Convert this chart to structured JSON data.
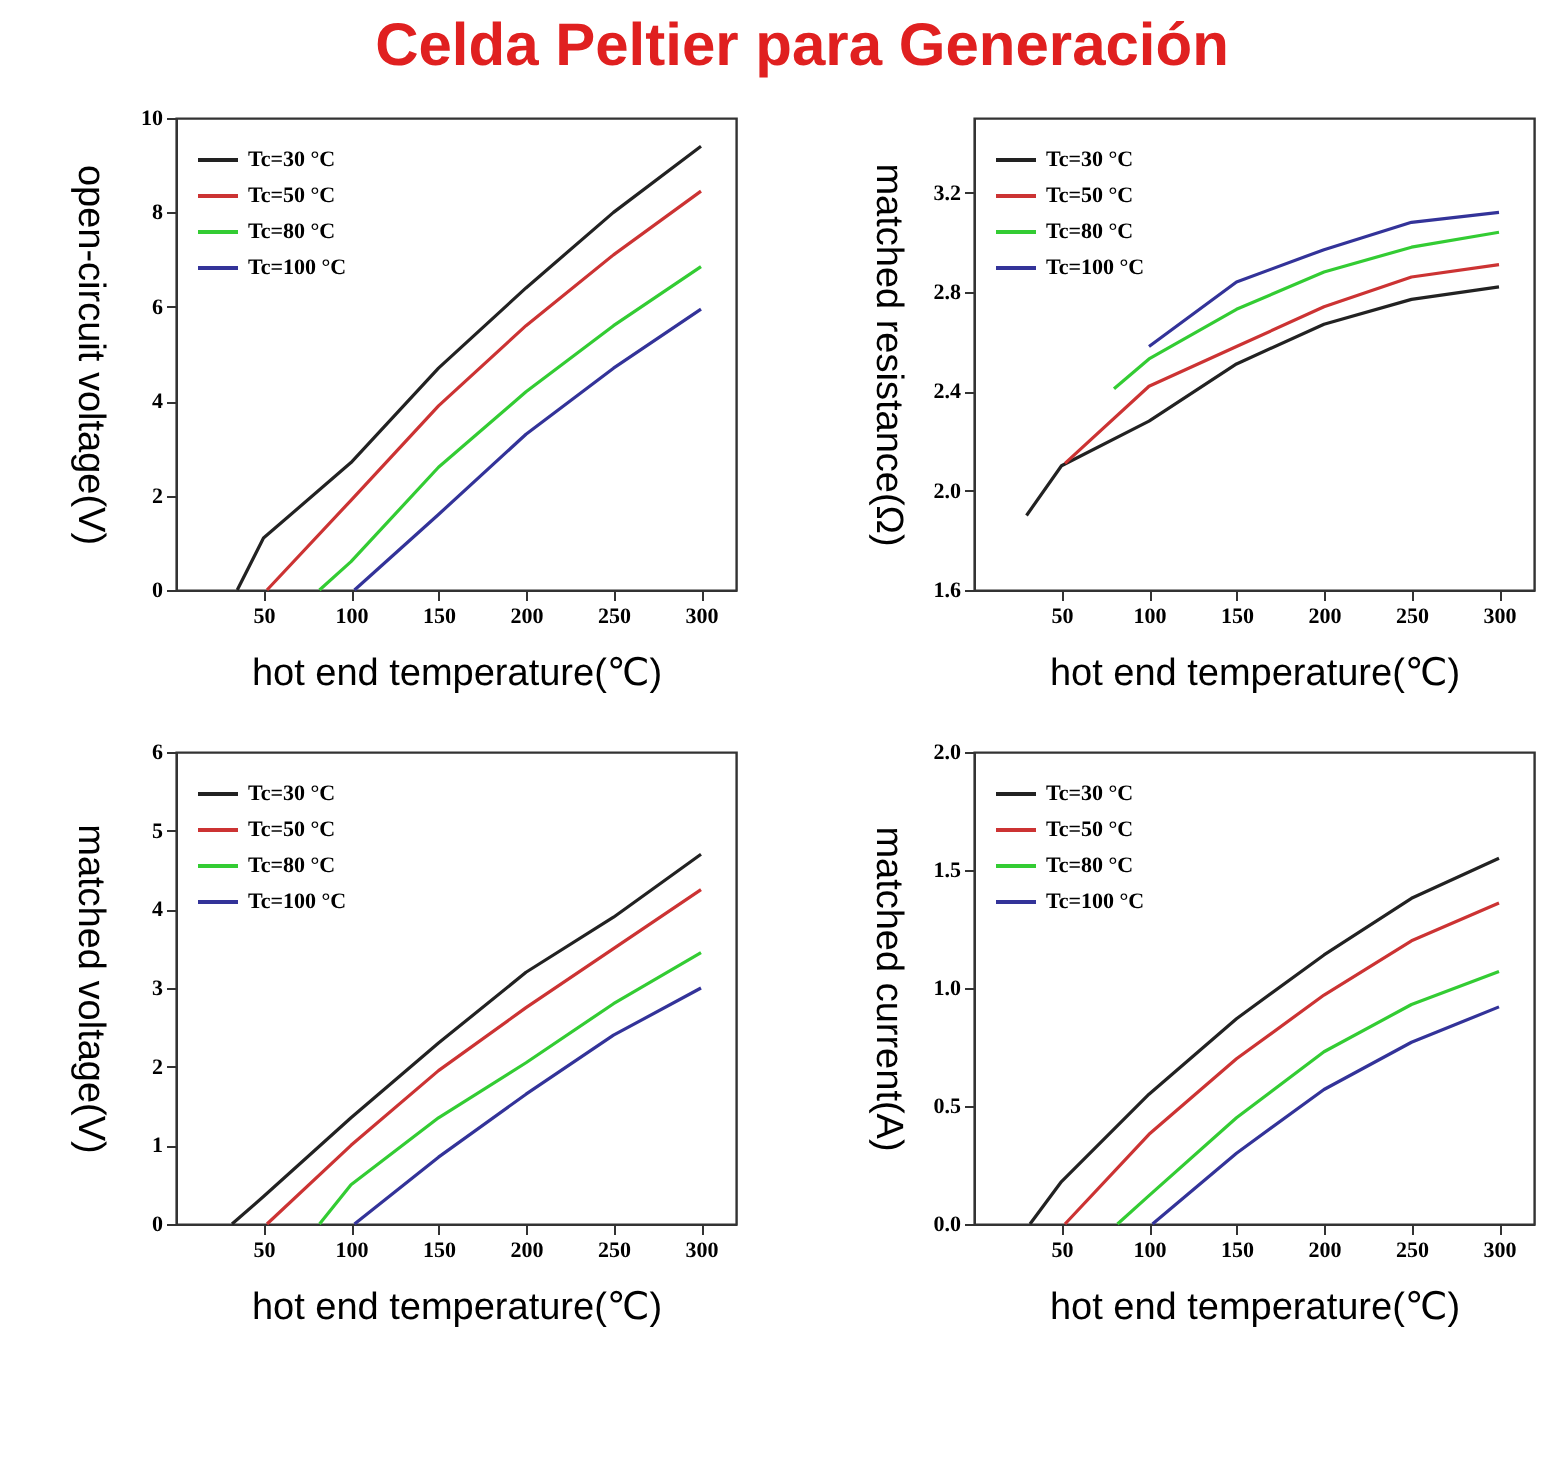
{
  "chart_data": [
    {
      "type": "line",
      "title": "Celda Peltier para Generación",
      "xlabel": "hot end temperature(℃)",
      "ylabel": "open-circuit voltage(V)",
      "xlim": [
        0,
        320
      ],
      "xticks": [
        50,
        100,
        150,
        200,
        250,
        300
      ],
      "ylim": [
        0,
        10
      ],
      "yticks": [
        0,
        2,
        4,
        6,
        8,
        10
      ],
      "grid": false,
      "legend": "top left",
      "series": [
        {
          "name": "Tc=30 °C",
          "color": "#222222",
          "x": [
            35,
            50,
            100,
            150,
            200,
            250,
            300
          ],
          "values": [
            0,
            1.1,
            2.7,
            4.7,
            6.4,
            8.0,
            9.4
          ]
        },
        {
          "name": "Tc=50 °C",
          "color": "#cc3333",
          "x": [
            52,
            100,
            150,
            200,
            250,
            300
          ],
          "values": [
            0,
            1.9,
            3.9,
            5.6,
            7.1,
            8.45
          ]
        },
        {
          "name": "Tc=80 °C",
          "color": "#33cc33",
          "x": [
            82,
            100,
            150,
            200,
            250,
            300
          ],
          "values": [
            0,
            0.6,
            2.6,
            4.2,
            5.6,
            6.85
          ]
        },
        {
          "name": "Tc=100 °C",
          "color": "#333399",
          "x": [
            102,
            150,
            200,
            250,
            300
          ],
          "values": [
            0,
            1.6,
            3.3,
            4.7,
            5.95
          ]
        }
      ]
    },
    {
      "type": "line",
      "xlabel": "hot end temperature(℃)",
      "ylabel": "matched resistance(Ω)",
      "xlim": [
        0,
        320
      ],
      "xticks": [
        50,
        100,
        150,
        200,
        250,
        300
      ],
      "ylim": [
        1.6,
        3.5
      ],
      "yticks": [
        {
          "value": 1.6,
          "label": "1.6"
        },
        {
          "value": 2.0,
          "label": "2.0"
        },
        {
          "value": 2.4,
          "label": "2.4"
        },
        {
          "value": 2.8,
          "label": "2.8"
        },
        {
          "value": 3.2,
          "label": "3.2"
        }
      ],
      "grid": false,
      "legend": "top left",
      "series": [
        {
          "name": "Tc=30 °C",
          "color": "#222222",
          "x": [
            30,
            50,
            100,
            150,
            200,
            250,
            300
          ],
          "values": [
            1.9,
            2.1,
            2.28,
            2.51,
            2.67,
            2.77,
            2.82
          ]
        },
        {
          "name": "Tc=50 °C",
          "color": "#cc3333",
          "x": [
            52,
            100,
            150,
            200,
            250,
            300
          ],
          "values": [
            2.11,
            2.42,
            2.58,
            2.74,
            2.86,
            2.91
          ]
        },
        {
          "name": "Tc=80 °C",
          "color": "#33cc33",
          "x": [
            80,
            100,
            150,
            200,
            250,
            300
          ],
          "values": [
            2.41,
            2.53,
            2.73,
            2.88,
            2.98,
            3.04
          ]
        },
        {
          "name": "Tc=100 °C",
          "color": "#333399",
          "x": [
            100,
            150,
            200,
            250,
            300
          ],
          "values": [
            2.58,
            2.84,
            2.97,
            3.08,
            3.12
          ]
        }
      ]
    },
    {
      "type": "line",
      "xlabel": "hot end temperature(℃)",
      "ylabel": "matched voltage(V)",
      "xlim": [
        0,
        320
      ],
      "xticks": [
        50,
        100,
        150,
        200,
        250,
        300
      ],
      "ylim": [
        0,
        6
      ],
      "yticks": [
        0,
        1,
        2,
        3,
        4,
        5,
        6
      ],
      "grid": false,
      "legend": "top left",
      "series": [
        {
          "name": "Tc=30 °C",
          "color": "#222222",
          "x": [
            32,
            50,
            100,
            150,
            200,
            250,
            300
          ],
          "values": [
            0,
            0.35,
            1.35,
            2.3,
            3.2,
            3.9,
            4.7
          ]
        },
        {
          "name": "Tc=50 °C",
          "color": "#cc3333",
          "x": [
            52,
            100,
            150,
            200,
            250,
            300
          ],
          "values": [
            0,
            1.0,
            1.95,
            2.75,
            3.5,
            4.25
          ]
        },
        {
          "name": "Tc=80 °C",
          "color": "#33cc33",
          "x": [
            82,
            100,
            150,
            200,
            250,
            300
          ],
          "values": [
            0,
            0.5,
            1.35,
            2.05,
            2.8,
            3.45
          ]
        },
        {
          "name": "Tc=100 °C",
          "color": "#333399",
          "x": [
            102,
            150,
            200,
            250,
            300
          ],
          "values": [
            0,
            0.85,
            1.65,
            2.4,
            3.0
          ]
        }
      ]
    },
    {
      "type": "line",
      "xlabel": "hot end temperature(℃)",
      "ylabel": "matched current(A)",
      "xlim": [
        0,
        320
      ],
      "xticks": [
        50,
        100,
        150,
        200,
        250,
        300
      ],
      "ylim": [
        0,
        2
      ],
      "yticks": [
        {
          "value": 0,
          "label": "0.0"
        },
        {
          "value": 0.5,
          "label": "0.5"
        },
        {
          "value": 1,
          "label": "1.0"
        },
        {
          "value": 1.5,
          "label": "1.5"
        },
        {
          "value": 2,
          "label": "2.0"
        }
      ],
      "grid": false,
      "legend": "top left",
      "series": [
        {
          "name": "Tc=30 °C",
          "color": "#222222",
          "x": [
            32,
            50,
            100,
            150,
            200,
            250,
            300
          ],
          "values": [
            0,
            0.18,
            0.55,
            0.87,
            1.14,
            1.38,
            1.55
          ]
        },
        {
          "name": "Tc=50 °C",
          "color": "#cc3333",
          "x": [
            52,
            100,
            150,
            200,
            250,
            300
          ],
          "values": [
            0,
            0.38,
            0.7,
            0.97,
            1.2,
            1.36
          ]
        },
        {
          "name": "Tc=80 °C",
          "color": "#33cc33",
          "x": [
            82,
            100,
            150,
            200,
            250,
            300
          ],
          "values": [
            0,
            0.12,
            0.45,
            0.73,
            0.93,
            1.07
          ]
        },
        {
          "name": "Tc=100 °C",
          "color": "#333399",
          "x": [
            102,
            150,
            200,
            250,
            300
          ],
          "values": [
            0,
            0.3,
            0.57,
            0.77,
            0.92
          ]
        }
      ]
    }
  ]
}
